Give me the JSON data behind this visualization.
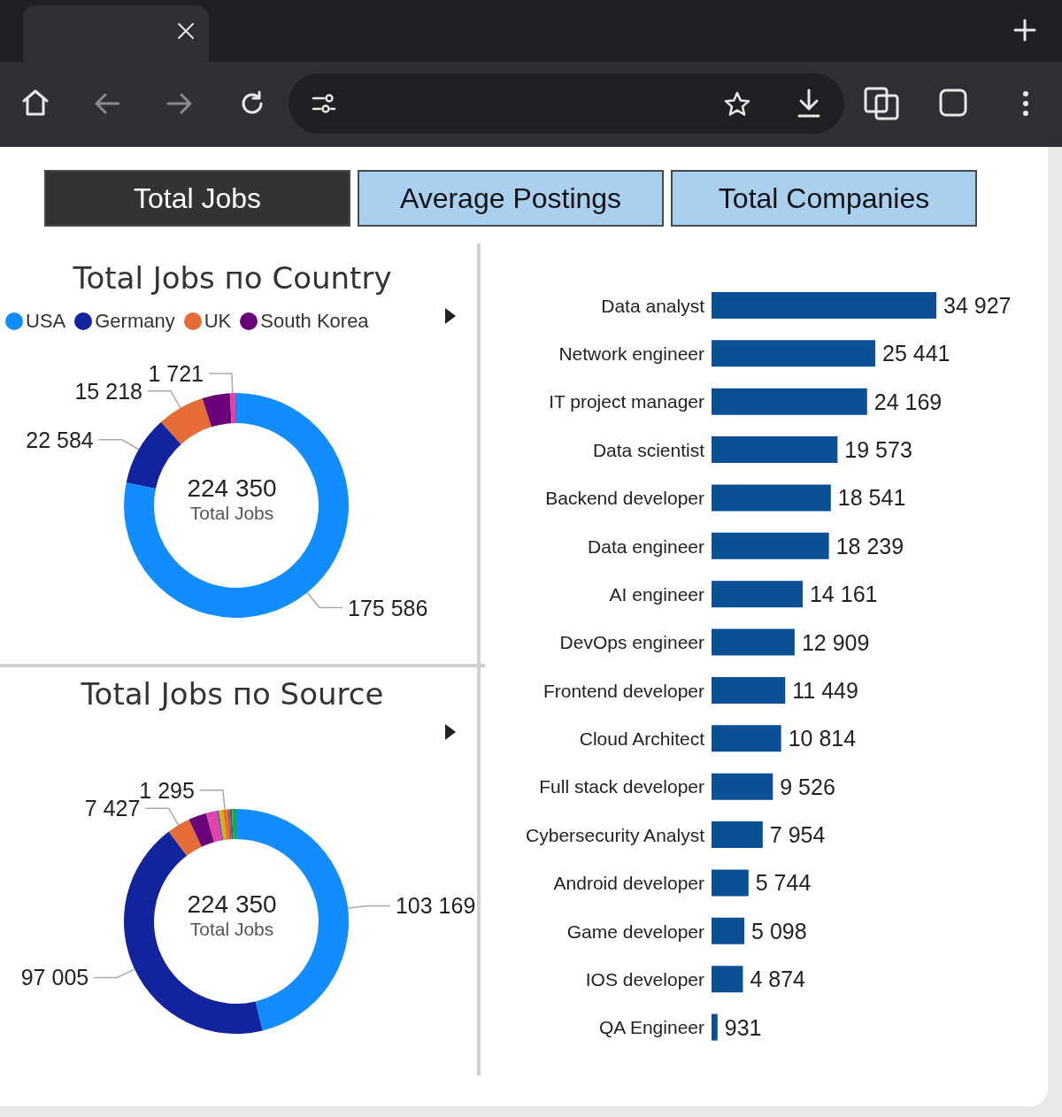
{
  "chart_data": [
    {
      "type": "other",
      "annotations": [
        "Total Jobs",
        "Average Postings",
        "Total Companies"
      ]
    },
    {
      "type": "donut",
      "title": "Total Jobs по Country",
      "legend": "top left",
      "annotations": [
        "224 350",
        "Total Jobs"
      ],
      "categories": [
        "USA",
        "Germany",
        "UK",
        "South Korea",
        null,
        null
      ],
      "values": [
        175586,
        22584,
        15218,
        8900,
        1721,
        341
      ],
      "colors": [
        "#118dff",
        "#12239e",
        "#e66c37",
        "#6b007b",
        "#e044a7",
        "#744ec2"
      ],
      "value_labels": [
        "175 586",
        "22 584",
        "15 218",
        null,
        "1 721",
        null
      ]
    },
    {
      "type": "donut",
      "title": "Total Jobs по Source",
      "annotations": [
        "224 350",
        "Total Jobs"
      ],
      "categories": [
        null,
        null,
        null,
        null,
        null,
        null,
        null,
        null,
        null,
        null,
        null
      ],
      "values": [
        103169,
        97005,
        7427,
        5800,
        3300,
        800,
        1300,
        1295,
        900,
        700,
        1359
      ],
      "colors": [
        "#118dff",
        "#12239e",
        "#e66c37",
        "#6b007b",
        "#e044a7",
        "#744ec2",
        "#d9b300",
        "#e0722f",
        "#d64550",
        "#197278",
        "#1aab40"
      ],
      "value_labels": [
        "103 169",
        "97 005",
        "7 427",
        null,
        null,
        null,
        null,
        "1 295",
        null,
        null,
        null
      ]
    },
    {
      "type": "bar",
      "orientation": "horizontal",
      "color": "#0b4f95",
      "categories": [
        "Data analyst",
        "Network engineer",
        "IT project manager",
        "Data scientist",
        "Backend developer",
        "Data engineer",
        "AI engineer",
        "DevOps engineer",
        "Frontend developer",
        "Cloud Architect",
        "Full stack developer",
        "Cybersecurity Analyst",
        "Android developer",
        "Game developer",
        "IOS developer",
        "QA Engineer"
      ],
      "values": [
        34927,
        25441,
        24169,
        19573,
        18541,
        18239,
        14161,
        12909,
        11449,
        10814,
        9526,
        7954,
        5744,
        5098,
        4874,
        931
      ],
      "value_labels": [
        "34 927",
        "25 441",
        "24 169",
        "19 573",
        "18 541",
        "18 239",
        "14 161",
        "12 909",
        "11 449",
        "10 814",
        "9 526",
        "7 954",
        "5 744",
        "5 098",
        "4 874",
        "931"
      ]
    }
  ]
}
